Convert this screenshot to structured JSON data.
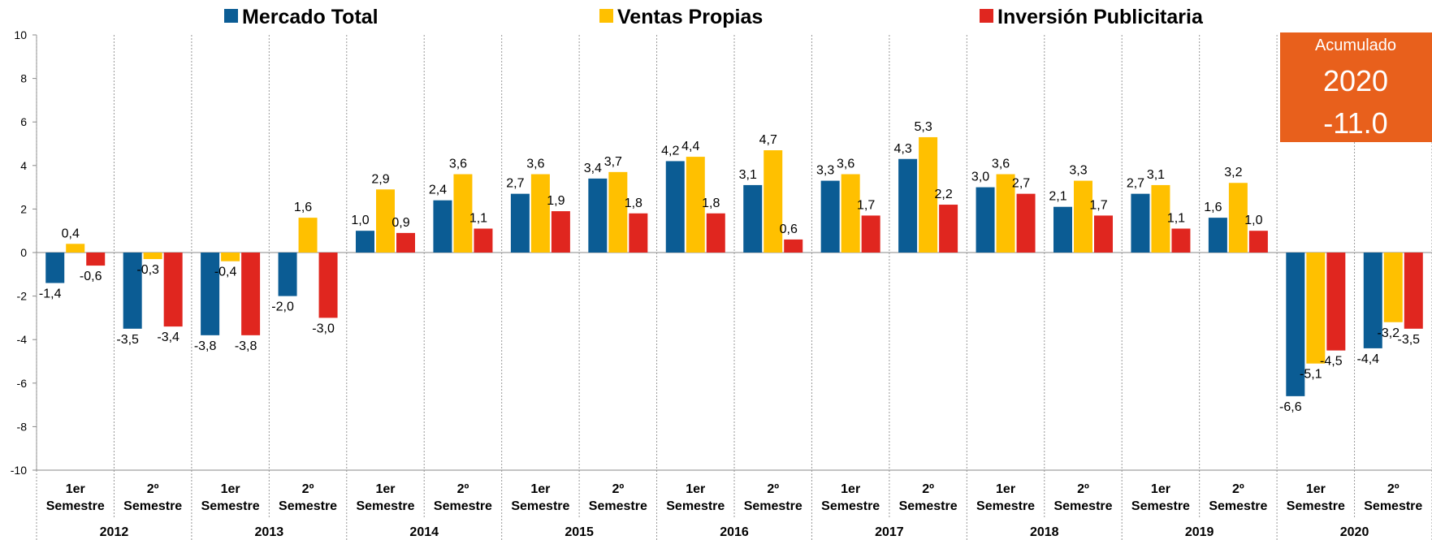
{
  "chart_data": {
    "type": "bar",
    "categories": [
      [
        "1er",
        "Semestre"
      ],
      [
        "2º",
        "Semestre"
      ],
      [
        "1er",
        "Semestre"
      ],
      [
        "2º",
        "Semestre"
      ],
      [
        "1er",
        "Semestre"
      ],
      [
        "2º",
        "Semestre"
      ],
      [
        "1er",
        "Semestre"
      ],
      [
        "2º",
        "Semestre"
      ],
      [
        "1er",
        "Semestre"
      ],
      [
        "2º",
        "Semestre"
      ],
      [
        "1er",
        "Semestre"
      ],
      [
        "2º",
        "Semestre"
      ],
      [
        "1er",
        "Semestre"
      ],
      [
        "2º",
        "Semestre"
      ],
      [
        "1er",
        "Semestre"
      ],
      [
        "2º",
        "Semestre"
      ],
      [
        "1er",
        "Semestre"
      ],
      [
        "2º",
        "Semestre"
      ]
    ],
    "years": [
      "2012",
      "2013",
      "2014",
      "2015",
      "2016",
      "2017",
      "2018",
      "2019",
      "2020"
    ],
    "series": [
      {
        "name": "Mercado Total",
        "color": "#0B5C94",
        "values": [
          -1.4,
          -3.5,
          -3.8,
          -2.0,
          1.0,
          2.4,
          2.7,
          3.4,
          4.2,
          3.1,
          3.3,
          4.3,
          3.0,
          2.1,
          2.7,
          1.6,
          -6.6,
          -4.4
        ],
        "value_labels": [
          "-1,4",
          "-3,5",
          "-3,8",
          "-2,0",
          "1,0",
          "2,4",
          "2,7",
          "3,4",
          "4,2",
          "3,1",
          "3,3",
          "4,3",
          "3,0",
          "2,1",
          "2,7",
          "1,6",
          "-6,6",
          "-4,4"
        ]
      },
      {
        "name": "Ventas Propias",
        "color": "#FFC000",
        "values": [
          0.4,
          -0.3,
          -0.4,
          1.6,
          2.9,
          3.6,
          3.6,
          3.7,
          4.4,
          4.7,
          3.6,
          5.3,
          3.6,
          3.3,
          3.1,
          3.2,
          -5.1,
          -3.2
        ],
        "value_labels": [
          "0,4",
          "-0,3",
          "-0,4",
          "1,6",
          "2,9",
          "3,6",
          "3,6",
          "3,7",
          "4,4",
          "4,7",
          "3,6",
          "5,3",
          "3,6",
          "3,3",
          "3,1",
          "3,2",
          "-5,1",
          "-3,2"
        ]
      },
      {
        "name": "Inversión Publicitaria",
        "color": "#E0261F",
        "values": [
          -0.6,
          -3.4,
          -3.8,
          -3.0,
          0.9,
          1.1,
          1.9,
          1.8,
          1.8,
          0.6,
          1.7,
          2.2,
          2.7,
          1.7,
          1.1,
          1.0,
          -4.5,
          -3.5
        ],
        "value_labels": [
          "-0,6",
          "-3,4",
          "-3,8",
          "-3,0",
          "0,9",
          "1,1",
          "1,9",
          "1,8",
          "1,8",
          "0,6",
          "1,7",
          "2,2",
          "2,7",
          "1,7",
          "1,1",
          "1,0",
          "-4,5",
          "-3,5"
        ]
      }
    ],
    "ylim": [
      -10,
      10
    ],
    "yticks": [
      -10,
      -8,
      -6,
      -4,
      -2,
      0,
      2,
      4,
      6,
      8,
      10
    ],
    "annotation": {
      "title": "Acumulado",
      "year": "2020",
      "value": "-11.0",
      "color": "#E8601C"
    }
  }
}
